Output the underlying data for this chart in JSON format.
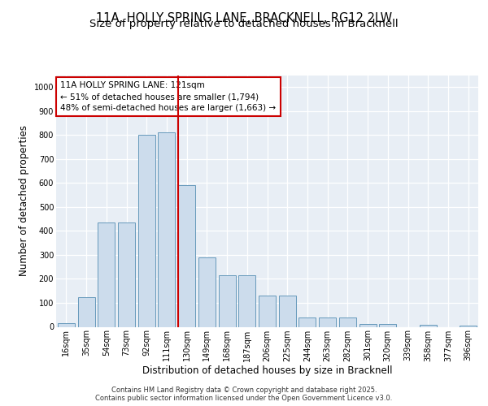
{
  "title_line1": "11A, HOLLY SPRING LANE, BRACKNELL, RG12 2LW",
  "title_line2": "Size of property relative to detached houses in Bracknell",
  "xlabel": "Distribution of detached houses by size in Bracknell",
  "ylabel": "Number of detached properties",
  "categories": [
    "16sqm",
    "35sqm",
    "54sqm",
    "73sqm",
    "92sqm",
    "111sqm",
    "130sqm",
    "149sqm",
    "168sqm",
    "187sqm",
    "206sqm",
    "225sqm",
    "244sqm",
    "263sqm",
    "282sqm",
    "301sqm",
    "320sqm",
    "339sqm",
    "358sqm",
    "377sqm",
    "396sqm"
  ],
  "values": [
    15,
    125,
    435,
    435,
    800,
    810,
    590,
    290,
    215,
    215,
    130,
    130,
    40,
    40,
    40,
    12,
    12,
    0,
    8,
    0,
    5
  ],
  "bar_color": "#ccdcec",
  "bar_edge_color": "#6699bb",
  "vline_x": 5.55,
  "vline_color": "#cc0000",
  "annotation_text": "11A HOLLY SPRING LANE: 121sqm\n← 51% of detached houses are smaller (1,794)\n48% of semi-detached houses are larger (1,663) →",
  "annotation_box_color": "#cc0000",
  "ylim": [
    0,
    1050
  ],
  "yticks": [
    0,
    100,
    200,
    300,
    400,
    500,
    600,
    700,
    800,
    900,
    1000
  ],
  "background_color": "#e8eef5",
  "footer_text": "Contains HM Land Registry data © Crown copyright and database right 2025.\nContains public sector information licensed under the Open Government Licence v3.0.",
  "title_fontsize": 10.5,
  "subtitle_fontsize": 9.5,
  "tick_fontsize": 7,
  "ylabel_fontsize": 8.5,
  "xlabel_fontsize": 8.5,
  "annotation_fontsize": 7.5,
  "footer_fontsize": 6
}
